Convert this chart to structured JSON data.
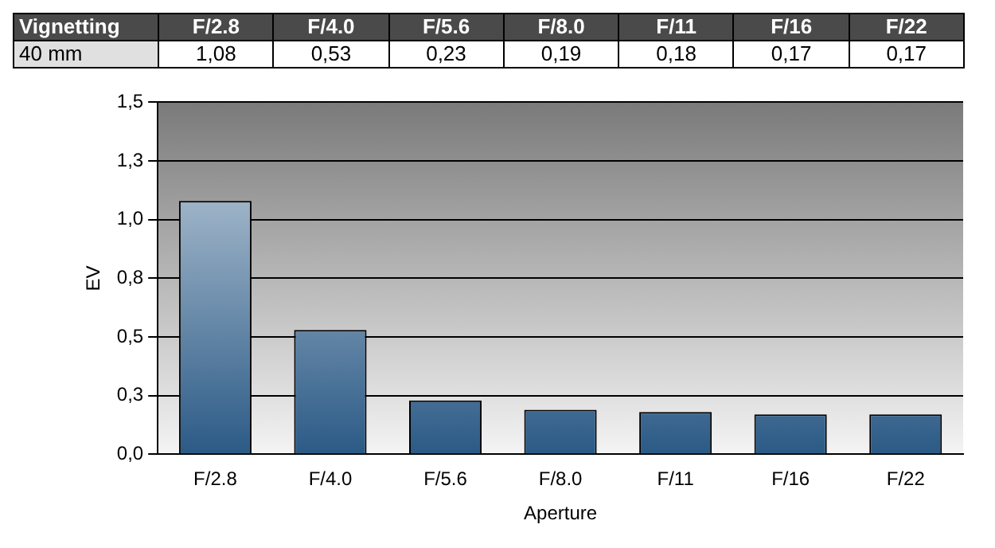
{
  "chart_data": {
    "type": "bar",
    "title": "Vignetting",
    "xlabel": "Aperture",
    "ylabel": "EV",
    "categories": [
      "F/2.8",
      "F/4.0",
      "F/5.6",
      "F/8.0",
      "F/11",
      "F/16",
      "F/22"
    ],
    "series": [
      {
        "name": "40 mm",
        "color": "#2b5a86",
        "values": [
          1.08,
          0.53,
          0.23,
          0.19,
          0.18,
          0.17,
          0.17
        ],
        "value_labels": [
          "1,08",
          "0,53",
          "0,23",
          "0,19",
          "0,18",
          "0,17",
          "0,17"
        ]
      }
    ],
    "ylim": [
      0,
      1.5
    ],
    "yticks": [
      {
        "value": 0,
        "label": "0,0"
      },
      {
        "value": 0.25,
        "label": "0,3"
      },
      {
        "value": 0.5,
        "label": "0,5"
      },
      {
        "value": 0.75,
        "label": "0,8"
      },
      {
        "value": 1,
        "label": "1,0"
      },
      {
        "value": 1.25,
        "label": "1,3"
      },
      {
        "value": 1.5,
        "label": "1,5"
      }
    ],
    "grid": "y",
    "legend": false
  }
}
